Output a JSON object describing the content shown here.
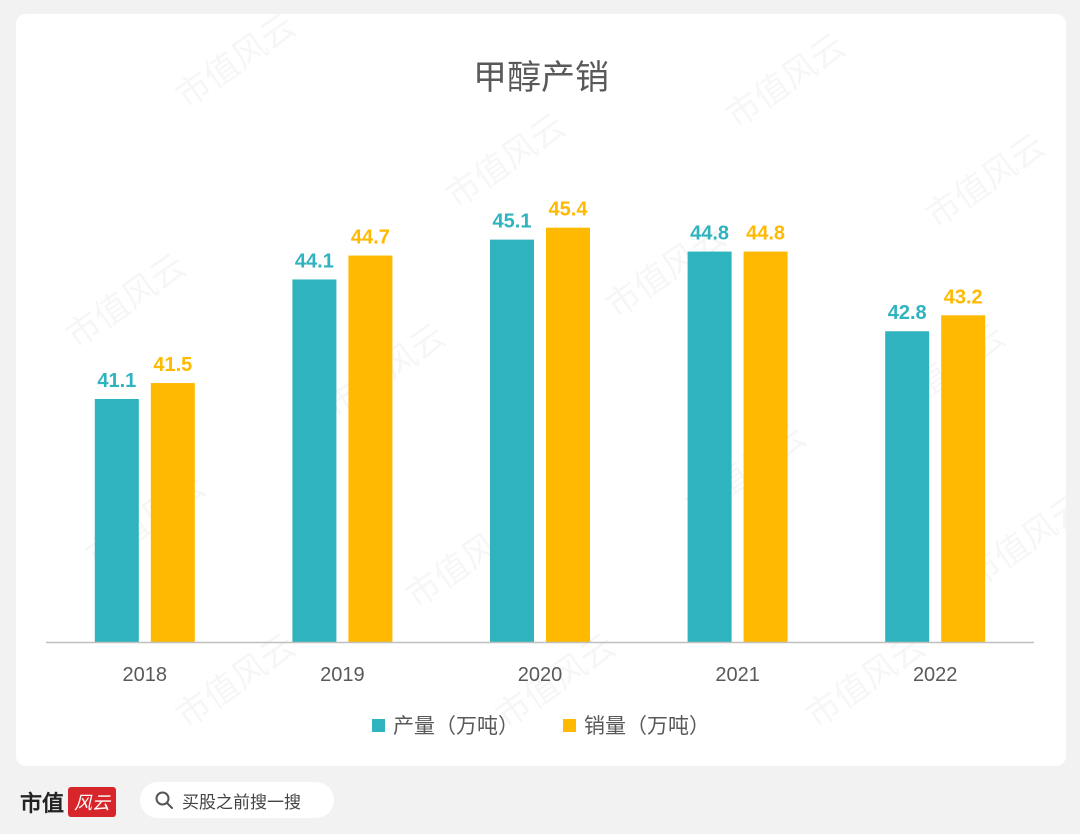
{
  "chart_data": {
    "type": "bar",
    "title": "甲醇产销",
    "categories": [
      "2018",
      "2019",
      "2020",
      "2021",
      "2022"
    ],
    "series": [
      {
        "name": "产量（万吨）",
        "color": "#2eb3bf",
        "values": [
          41.1,
          44.1,
          45.1,
          44.8,
          42.8
        ]
      },
      {
        "name": "销量（万吨）",
        "color": "#ffb900",
        "values": [
          41.5,
          44.7,
          45.4,
          44.8,
          43.2
        ]
      }
    ],
    "ylim": [
      35,
      47.5
    ],
    "grid": false,
    "legend": "bottom",
    "data_labels": true
  },
  "watermark_text": "市值风云",
  "footer": {
    "brand_text": "市值",
    "brand_logo_text": "风云",
    "search_icon": "search-icon",
    "search_placeholder": "买股之前搜一搜"
  }
}
